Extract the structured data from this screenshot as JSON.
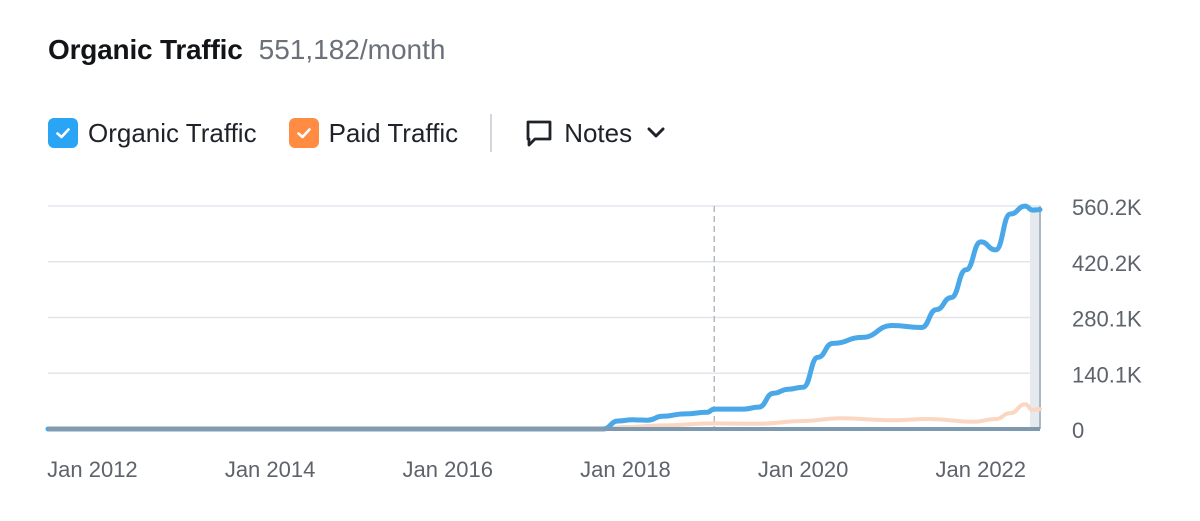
{
  "header": {
    "title": "Organic Traffic",
    "value": "551,182/month"
  },
  "legend": {
    "items": [
      {
        "label": "Organic Traffic",
        "color": "#2aa4f4",
        "checked": true,
        "icon": "check-icon"
      },
      {
        "label": "Paid Traffic",
        "color": "#ff8c42",
        "checked": true,
        "icon": "check-icon"
      }
    ],
    "notes": {
      "label": "Notes",
      "icon": "speech-bubble-icon",
      "chevron": "chevron-down-icon"
    }
  },
  "colors": {
    "organic": "#4aa8e8",
    "paid": "#fbd6c0",
    "grid": "#e2e6eb",
    "baseline": "#7d99b0"
  },
  "chart_data": {
    "type": "line",
    "x_ticks": [
      "Jan 2012",
      "Jan 2014",
      "Jan 2016",
      "Jan 2018",
      "Jan 2020",
      "Jan 2022"
    ],
    "y_ticks": [
      "0",
      "140.1K",
      "280.1K",
      "420.2K",
      "560.2K"
    ],
    "ylim": [
      0,
      560200
    ],
    "xlim": [
      "2011-07",
      "2022-09"
    ],
    "grid": true,
    "marker_line": "2019-01",
    "series": [
      {
        "name": "Organic Traffic",
        "points": [
          [
            "2011-07",
            0
          ],
          [
            "2017-10",
            0
          ],
          [
            "2017-12",
            20000
          ],
          [
            "2018-02",
            23000
          ],
          [
            "2018-04",
            22000
          ],
          [
            "2018-06",
            32000
          ],
          [
            "2018-09",
            38000
          ],
          [
            "2018-12",
            42000
          ],
          [
            "2019-01",
            50000
          ],
          [
            "2019-05",
            50000
          ],
          [
            "2019-07",
            55000
          ],
          [
            "2019-09",
            90000
          ],
          [
            "2019-11",
            100000
          ],
          [
            "2020-01",
            105000
          ],
          [
            "2020-03",
            180000
          ],
          [
            "2020-05",
            215000
          ],
          [
            "2020-09",
            230000
          ],
          [
            "2021-01",
            260000
          ],
          [
            "2021-05",
            255000
          ],
          [
            "2021-07",
            300000
          ],
          [
            "2021-09",
            330000
          ],
          [
            "2021-11",
            400000
          ],
          [
            "2022-01",
            470000
          ],
          [
            "2022-03",
            450000
          ],
          [
            "2022-05",
            540000
          ],
          [
            "2022-07",
            560000
          ],
          [
            "2022-08",
            550000
          ],
          [
            "2022-09",
            551182
          ]
        ]
      },
      {
        "name": "Paid Traffic",
        "points": [
          [
            "2011-07",
            0
          ],
          [
            "2017-10",
            0
          ],
          [
            "2018-01",
            5000
          ],
          [
            "2018-06",
            9000
          ],
          [
            "2019-01",
            14000
          ],
          [
            "2019-07",
            13000
          ],
          [
            "2020-01",
            20000
          ],
          [
            "2020-06",
            27000
          ],
          [
            "2021-01",
            22000
          ],
          [
            "2021-06",
            25000
          ],
          [
            "2021-12",
            18000
          ],
          [
            "2022-03",
            25000
          ],
          [
            "2022-05",
            40000
          ],
          [
            "2022-07",
            62000
          ],
          [
            "2022-08",
            48000
          ],
          [
            "2022-09",
            50000
          ]
        ]
      }
    ]
  }
}
